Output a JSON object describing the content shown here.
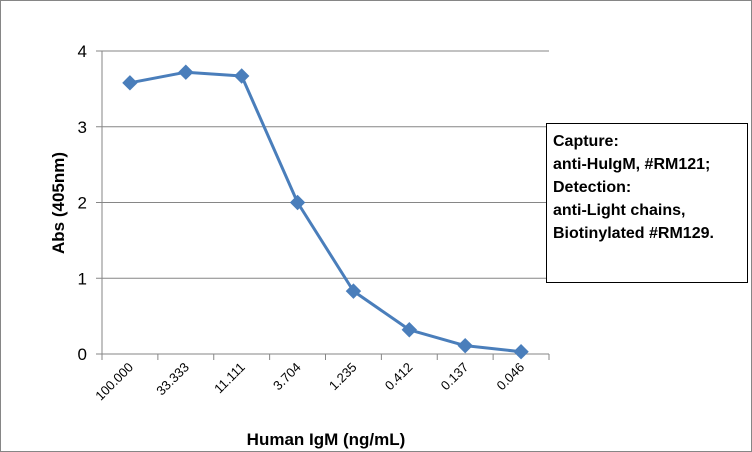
{
  "chart_data": {
    "type": "line",
    "title": "",
    "xlabel": "Human IgM (ng/mL)",
    "ylabel": "Abs (405nm)",
    "categories": [
      "100.000",
      "33.333",
      "11.111",
      "3.704",
      "1.235",
      "0.412",
      "0.137",
      "0.046"
    ],
    "series": [
      {
        "values": [
          3.58,
          3.72,
          3.67,
          2.0,
          0.83,
          0.32,
          0.11,
          0.03
        ]
      }
    ],
    "ylim": [
      0,
      4
    ],
    "yticks": [
      "0",
      "1",
      "2",
      "3",
      "4"
    ],
    "grid": "horizontal",
    "marker": "diamond",
    "series_color": "#4a7ebb",
    "annotation": [
      "Capture:",
      "anti-HuIgM, #RM121;",
      "Detection:",
      "anti-Light chains,",
      "Biotinylated #RM129."
    ]
  }
}
